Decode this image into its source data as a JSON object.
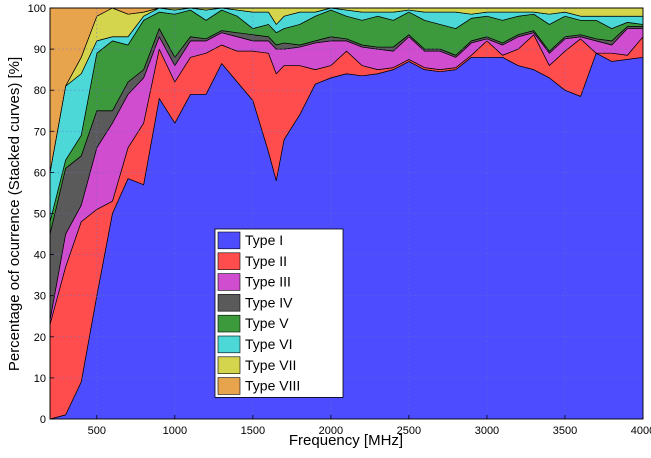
{
  "chart_data": {
    "type": "stacked_area",
    "xlabel": "Frequency  [MHz]",
    "ylabel": "Percentage ocf ocurrence (Stacked curves)  [%]",
    "x": [
      200,
      300,
      400,
      500,
      600,
      700,
      800,
      900,
      1000,
      1100,
      1200,
      1300,
      1400,
      1500,
      1600,
      1650,
      1700,
      1800,
      1900,
      2000,
      2100,
      2200,
      2300,
      2400,
      2500,
      2600,
      2700,
      2800,
      2900,
      3000,
      3100,
      3200,
      3300,
      3400,
      3500,
      3600,
      3700,
      3800,
      3900,
      4000
    ],
    "series": [
      {
        "name": "Type I",
        "color": "#4d4dff",
        "values": [
          0,
          1,
          9,
          30,
          50,
          58.5,
          57,
          78,
          72,
          79,
          79,
          86.5,
          82,
          77.5,
          65,
          58,
          68,
          74,
          81.5,
          83,
          84,
          83.5,
          84,
          85,
          87,
          85,
          84.5,
          85,
          88,
          88,
          88,
          86,
          85,
          83,
          80,
          78.5,
          89,
          87,
          87.5,
          88
        ]
      },
      {
        "name": "Type II",
        "color": "#ff4d4d",
        "values": [
          23,
          36,
          39,
          21,
          3,
          7.5,
          15,
          12,
          10,
          9,
          10,
          4.5,
          7.5,
          12,
          24,
          26,
          18,
          12,
          3.5,
          3,
          5.5,
          2.5,
          1,
          0.5,
          0.5,
          0.5,
          0.5,
          0.5,
          0.5,
          4,
          0.5,
          4,
          8.5,
          3,
          9.5,
          14,
          0,
          2,
          1,
          5
        ]
      },
      {
        "name": "Type III",
        "color": "#d04dd0",
        "values": [
          1,
          8,
          4,
          15,
          19,
          13,
          11,
          3,
          4,
          4,
          3,
          3,
          3.5,
          2.5,
          3,
          6,
          4,
          4.5,
          6.5,
          6,
          2.5,
          4.5,
          5,
          4,
          5.5,
          4,
          4.5,
          2.5,
          3,
          0.5,
          2.5,
          3,
          0.5,
          3,
          3,
          0.5,
          3,
          2,
          6.5,
          2
        ]
      },
      {
        "name": "Type IV",
        "color": "#5a5a5a",
        "values": [
          21,
          16,
          12,
          9,
          3,
          3,
          2,
          2,
          2,
          1,
          0.5,
          0.5,
          1,
          1.5,
          1,
          1,
          1.5,
          0.5,
          0.5,
          1,
          0.5,
          0.5,
          0.5,
          1,
          0.5,
          0.5,
          0.5,
          0.5,
          0.5,
          0.5,
          0.5,
          0.5,
          0.5,
          0.5,
          0.5,
          0.5,
          0.5,
          1,
          0.5,
          0.5
        ]
      },
      {
        "name": "Type V",
        "color": "#3c9a3c",
        "values": [
          3,
          2,
          5,
          14,
          17,
          9,
          12,
          4,
          10.5,
          6.5,
          4.5,
          5,
          4,
          1.5,
          3,
          3,
          3.5,
          5,
          6,
          6.5,
          5.5,
          6,
          7.5,
          6.5,
          5.5,
          7,
          6,
          6.5,
          5.5,
          5,
          5.5,
          4.5,
          4,
          6.5,
          5,
          3.5,
          4.5,
          3,
          1,
          0.5
        ]
      },
      {
        "name": "Type VI",
        "color": "#4dd8d8",
        "values": [
          12,
          18,
          15,
          3,
          1,
          2,
          1,
          1,
          1,
          0.5,
          2.5,
          0.5,
          1.5,
          4,
          3,
          2,
          3,
          3,
          1,
          0.5,
          1.5,
          2,
          1,
          2,
          0.5,
          2,
          3,
          4,
          1,
          1,
          2,
          1,
          0.5,
          2.5,
          1,
          1,
          1,
          3,
          1.5,
          2
        ]
      },
      {
        "name": "Type VII",
        "color": "#d4d44d",
        "values": [
          0,
          0,
          4,
          6,
          7,
          5.5,
          1,
          0,
          0.5,
          0,
          0.5,
          0,
          0.5,
          1,
          1,
          4,
          2,
          1,
          1,
          0,
          0.5,
          1,
          1,
          1,
          0.5,
          1,
          1,
          1,
          1.5,
          1,
          1,
          1,
          1,
          1.5,
          1,
          2,
          2,
          2,
          2,
          2
        ]
      },
      {
        "name": "Type VIII",
        "color": "#e8a34d",
        "values": [
          40,
          19,
          12,
          2,
          0,
          1.5,
          1,
          0,
          0,
          0,
          0,
          0,
          0,
          0,
          0,
          0,
          0,
          0,
          0,
          0,
          0,
          0,
          0,
          0,
          0,
          0,
          0,
          0,
          0,
          0,
          0,
          0,
          0,
          0,
          0,
          0,
          0,
          0,
          0,
          0
        ]
      }
    ],
    "xlim": [
      200,
      4000
    ],
    "xticks": [
      500,
      1000,
      1500,
      2000,
      2500,
      3000,
      3500,
      4000
    ],
    "ylim": [
      0,
      100
    ],
    "yticks": [
      0,
      10,
      20,
      30,
      40,
      50,
      60,
      70,
      80,
      90,
      100
    ],
    "grid": true
  }
}
